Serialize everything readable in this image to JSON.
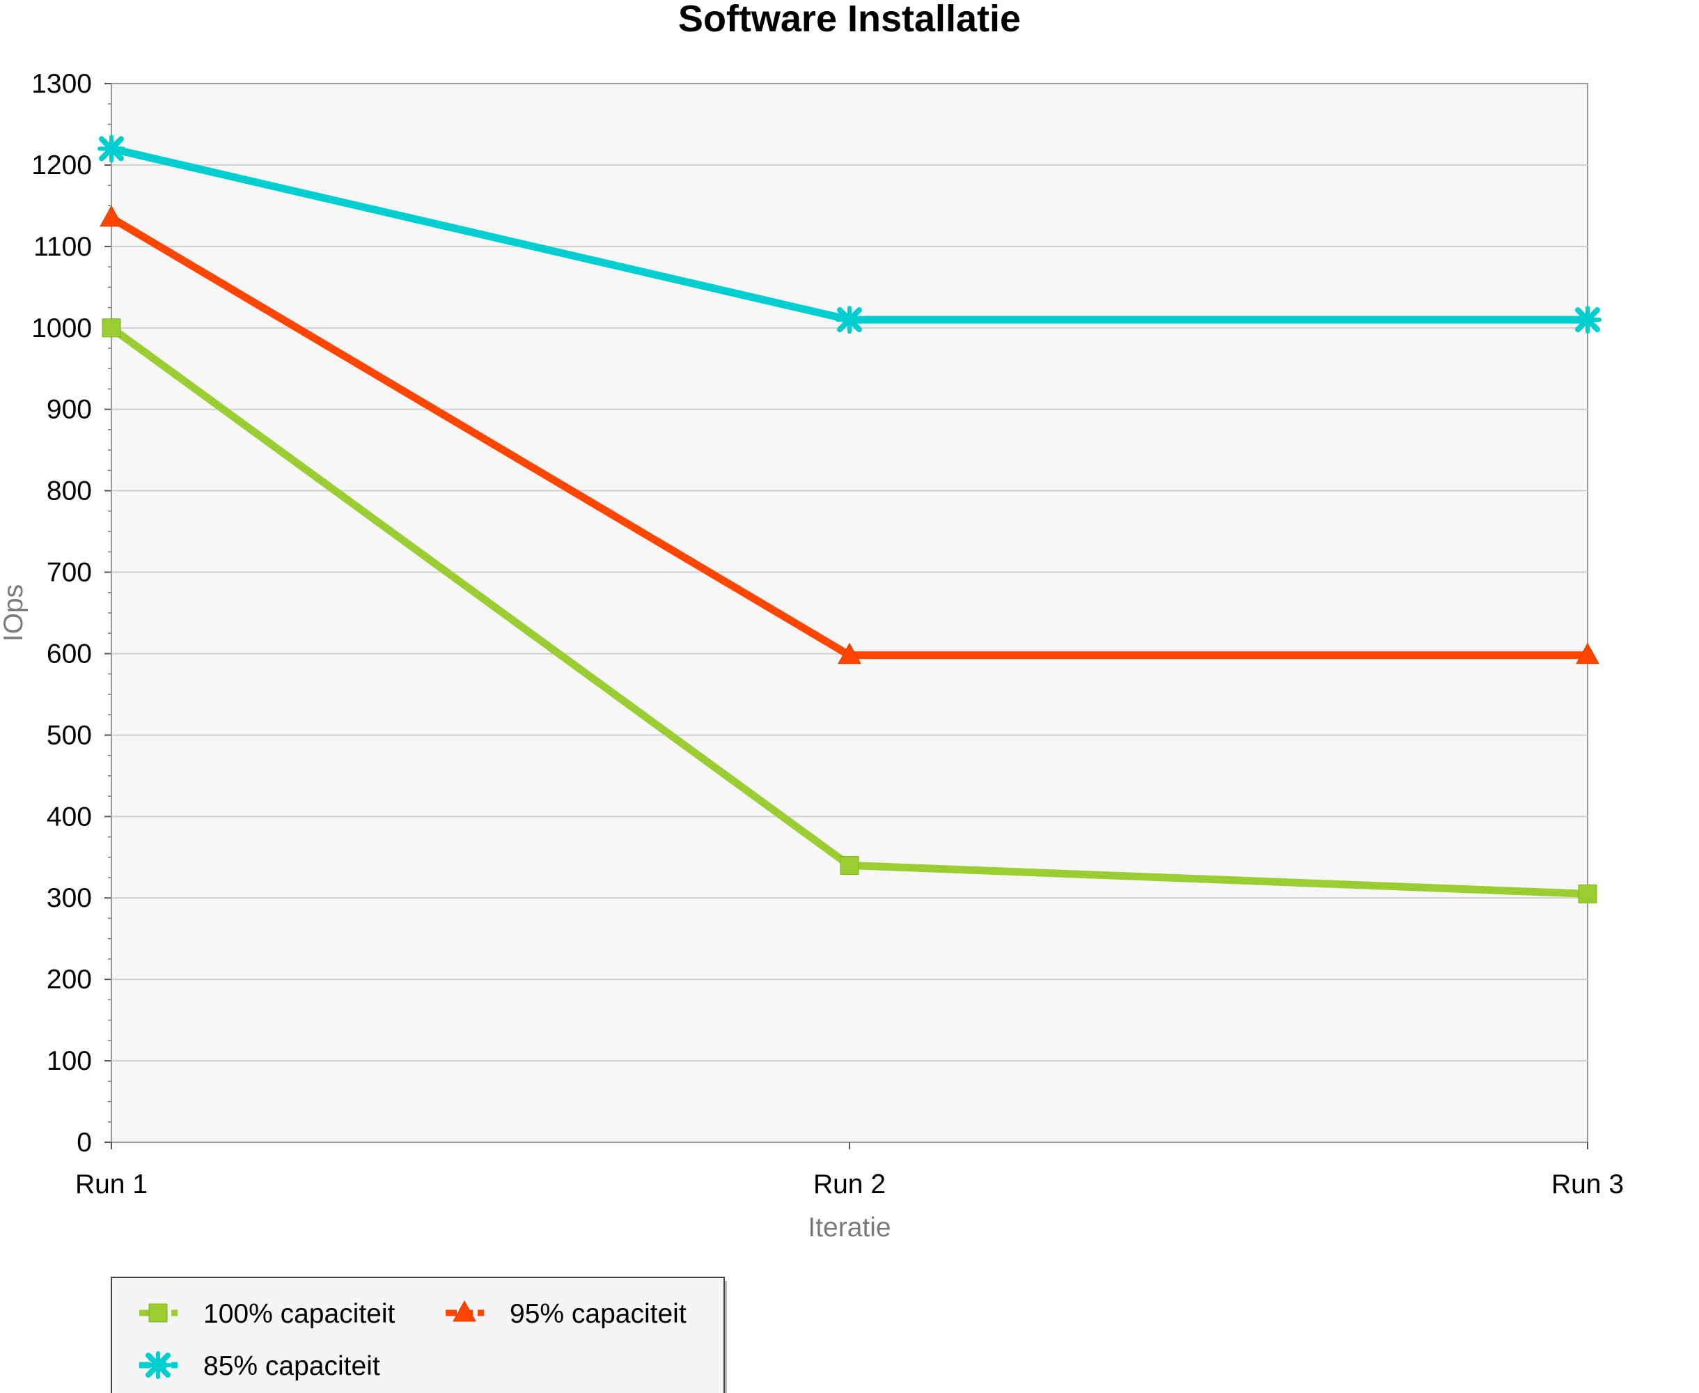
{
  "chart_data": {
    "type": "line",
    "title": "Software Installatie",
    "xlabel": "Iteratie",
    "ylabel": "IOps",
    "categories": [
      "Run 1",
      "Run 2",
      "Run 3"
    ],
    "ylim": [
      0,
      1300
    ],
    "yticks": [
      0,
      100,
      200,
      300,
      400,
      500,
      600,
      700,
      800,
      900,
      1000,
      1100,
      1200,
      1300
    ],
    "grid": true,
    "legend_position": "bottom-left",
    "series": [
      {
        "name": "100% capaciteit",
        "color": "#9acd32",
        "marker": "square",
        "values": [
          1000,
          340,
          305
        ]
      },
      {
        "name": "95% capaciteit",
        "color": "#ff4500",
        "marker": "triangle",
        "values": [
          1135,
          598,
          598
        ]
      },
      {
        "name": "85% capaciteit",
        "color": "#00ced1",
        "marker": "star",
        "values": [
          1220,
          1010,
          1010
        ]
      }
    ]
  }
}
